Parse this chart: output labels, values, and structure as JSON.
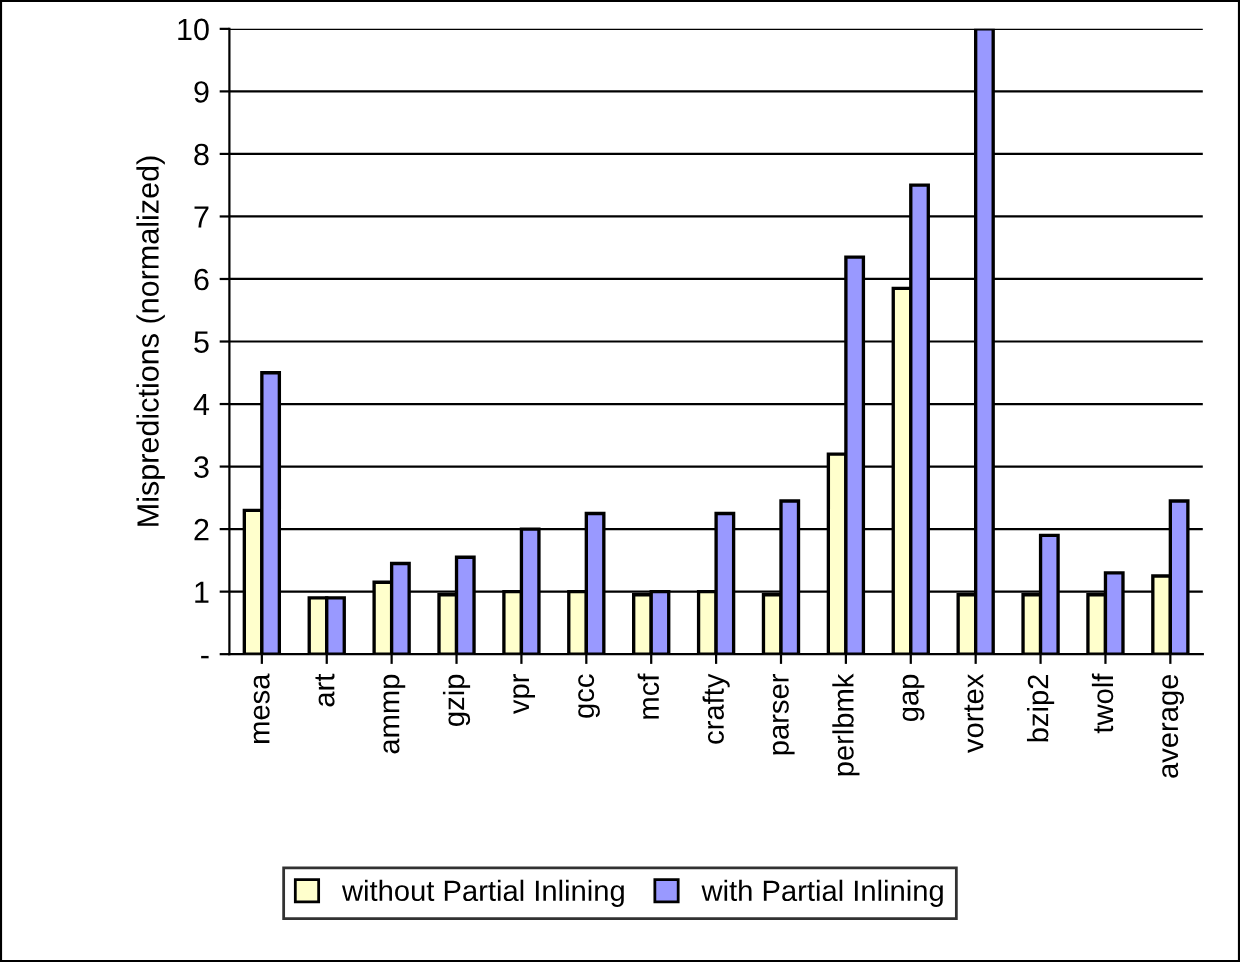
{
  "chart_data": {
    "type": "bar",
    "ylabel": "Mispredictions (normalized)",
    "categories": [
      "mesa",
      "art",
      "ammp",
      "gzip",
      "vpr",
      "gcc",
      "mcf",
      "crafty",
      "parser",
      "perlbmk",
      "gap",
      "vortex",
      "bzip2",
      "twolf",
      "average"
    ],
    "series": [
      {
        "name": "without Partial Inlining",
        "color": "#ffffcc",
        "values": [
          2.3,
          0.9,
          1.15,
          0.95,
          1.0,
          1.0,
          0.95,
          1.0,
          0.95,
          3.2,
          5.85,
          0.95,
          0.95,
          0.95,
          1.25
        ]
      },
      {
        "name": "with Partial Inlining",
        "color": "#9999ff",
        "values": [
          4.5,
          0.9,
          1.45,
          1.55,
          2.0,
          2.25,
          1.0,
          2.25,
          2.45,
          6.35,
          7.5,
          10,
          1.9,
          1.3,
          2.45
        ]
      }
    ],
    "ylim": [
      0,
      10
    ],
    "yticks": [
      {
        "value": 0,
        "label": "-"
      },
      1,
      2,
      3,
      4,
      5,
      6,
      7,
      8,
      9,
      10
    ],
    "grid": "y",
    "legend": "bottom"
  }
}
